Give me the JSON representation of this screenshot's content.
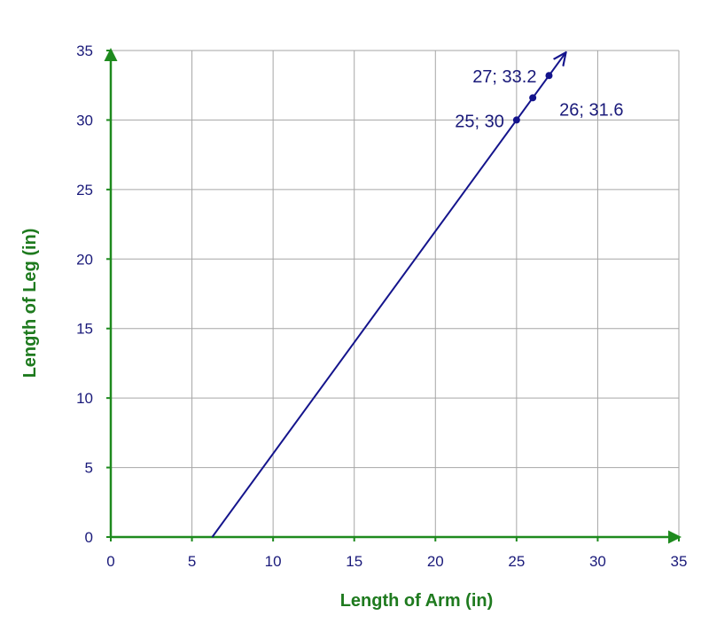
{
  "chart_data": {
    "type": "line",
    "xlabel": "Length of Arm (in)",
    "ylabel": "Length of Leg (in)",
    "xlim": [
      0,
      35
    ],
    "ylim": [
      0,
      35
    ],
    "xticks": [
      0,
      5,
      10,
      15,
      20,
      25,
      30,
      35
    ],
    "yticks": [
      0,
      5,
      10,
      15,
      20,
      25,
      30,
      35
    ],
    "grid": true,
    "series": [
      {
        "x": [
          6.25,
          28
        ],
        "y": [
          0,
          34.8
        ]
      }
    ],
    "points": [
      {
        "x": 25,
        "y": 30,
        "label": "25; 30",
        "label_side": "left"
      },
      {
        "x": 26,
        "y": 31.6,
        "label": "26; 31.6",
        "label_side": "below-right"
      },
      {
        "x": 27,
        "y": 33.2,
        "label": "27; 33.2",
        "label_side": "left"
      }
    ],
    "colors": {
      "line": "#14148c",
      "axis": "#1e8a1e",
      "grid": "#a6a6a6",
      "text": "#1a1a7a",
      "axis_title": "#1e7a1e"
    }
  }
}
